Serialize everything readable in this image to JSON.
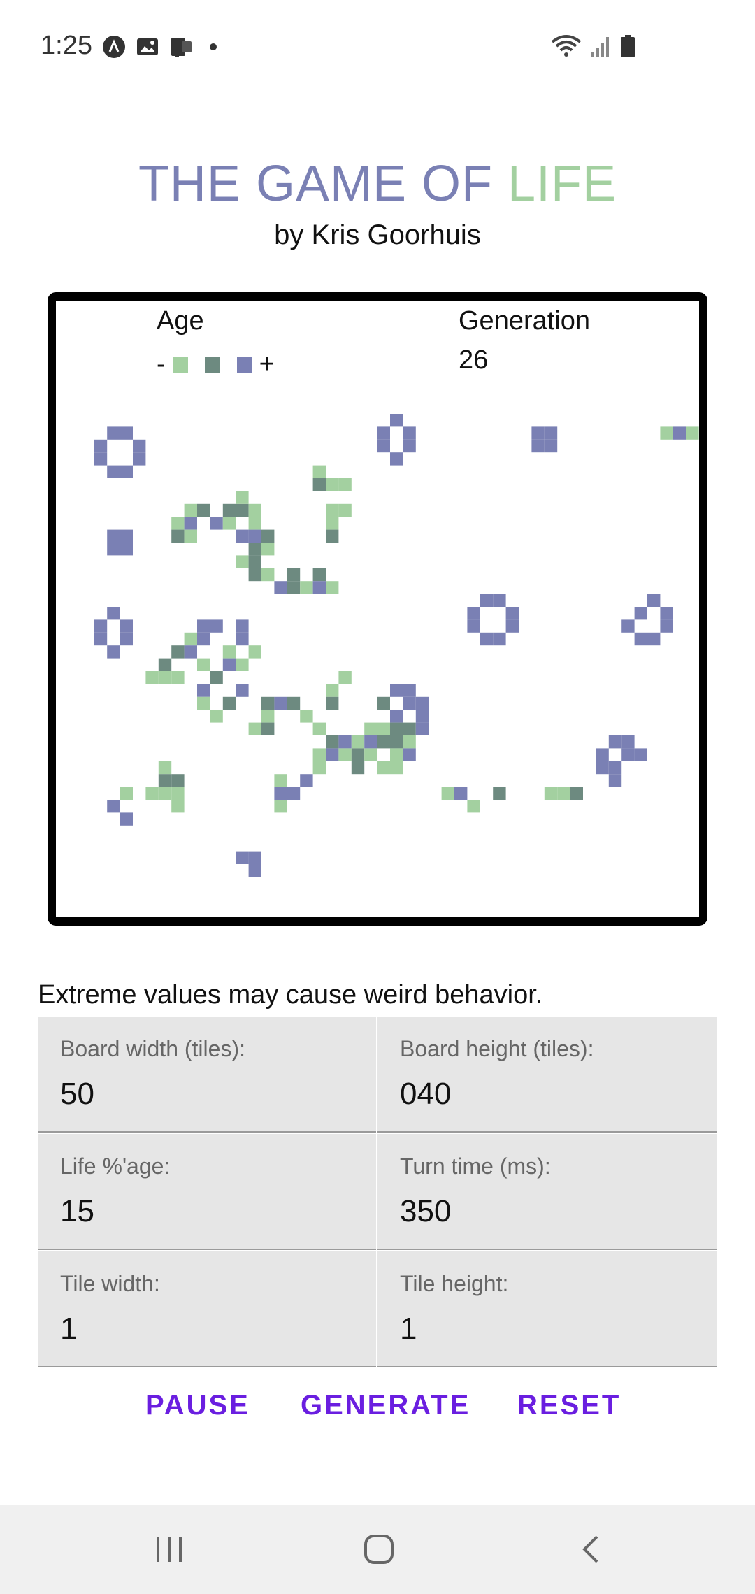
{
  "status_bar": {
    "time": "1:25",
    "left_icons": [
      "a-badge-icon",
      "gallery-icon",
      "cast-icon",
      "dot-icon"
    ],
    "right_icons": [
      "wifi-icon",
      "signal-icon",
      "battery-icon"
    ]
  },
  "header": {
    "title_part1": "THE GAME OF ",
    "title_part2": "LIFE",
    "subtitle": "by Kris Goorhuis"
  },
  "board": {
    "age_label": "Age",
    "age_minus": "-",
    "age_plus": "+",
    "generation_label": "Generation",
    "generation_value": "26",
    "colors": {
      "young": "#a3d0a0",
      "mid": "#6d8a80",
      "old": "#7a80b4"
    },
    "cells": [
      [
        3,
        1,
        3
      ],
      [
        4,
        1,
        3
      ],
      [
        2,
        2,
        3
      ],
      [
        5,
        2,
        3
      ],
      [
        2,
        3,
        3
      ],
      [
        5,
        3,
        3
      ],
      [
        3,
        4,
        3
      ],
      [
        4,
        4,
        3
      ],
      [
        3,
        9,
        3
      ],
      [
        4,
        9,
        3
      ],
      [
        3,
        10,
        3
      ],
      [
        4,
        10,
        3
      ],
      [
        25,
        0,
        3
      ],
      [
        24,
        1,
        3
      ],
      [
        26,
        1,
        3
      ],
      [
        24,
        2,
        3
      ],
      [
        26,
        2,
        3
      ],
      [
        25,
        3,
        3
      ],
      [
        36,
        1,
        3
      ],
      [
        37,
        1,
        3
      ],
      [
        36,
        2,
        3
      ],
      [
        37,
        2,
        3
      ],
      [
        46,
        1,
        1
      ],
      [
        47,
        1,
        3
      ],
      [
        48,
        1,
        1
      ],
      [
        19,
        4,
        1
      ],
      [
        19,
        5,
        2
      ],
      [
        20,
        5,
        1
      ],
      [
        21,
        5,
        1
      ],
      [
        20,
        7,
        1
      ],
      [
        21,
        7,
        1
      ],
      [
        20,
        8,
        1
      ],
      [
        20,
        9,
        2
      ],
      [
        9,
        7,
        1
      ],
      [
        10,
        7,
        2
      ],
      [
        12,
        7,
        2
      ],
      [
        13,
        7,
        2
      ],
      [
        14,
        7,
        1
      ],
      [
        13,
        6,
        1
      ],
      [
        8,
        8,
        1
      ],
      [
        9,
        8,
        3
      ],
      [
        11,
        8,
        3
      ],
      [
        12,
        8,
        1
      ],
      [
        14,
        8,
        1
      ],
      [
        8,
        9,
        2
      ],
      [
        9,
        9,
        1
      ],
      [
        13,
        9,
        3
      ],
      [
        14,
        9,
        3
      ],
      [
        15,
        9,
        2
      ],
      [
        14,
        10,
        2
      ],
      [
        15,
        10,
        1
      ],
      [
        13,
        11,
        1
      ],
      [
        14,
        11,
        2
      ],
      [
        14,
        12,
        2
      ],
      [
        15,
        12,
        1
      ],
      [
        17,
        12,
        2
      ],
      [
        16,
        13,
        3
      ],
      [
        17,
        13,
        2
      ],
      [
        18,
        13,
        1
      ],
      [
        19,
        12,
        2
      ],
      [
        19,
        13,
        3
      ],
      [
        20,
        13,
        1
      ],
      [
        3,
        15,
        3
      ],
      [
        2,
        16,
        3
      ],
      [
        4,
        16,
        3
      ],
      [
        2,
        17,
        3
      ],
      [
        4,
        17,
        3
      ],
      [
        3,
        18,
        3
      ],
      [
        10,
        16,
        3
      ],
      [
        11,
        16,
        3
      ],
      [
        9,
        17,
        1
      ],
      [
        10,
        17,
        3
      ],
      [
        13,
        17,
        3
      ],
      [
        13,
        16,
        3
      ],
      [
        8,
        18,
        2
      ],
      [
        9,
        18,
        3
      ],
      [
        12,
        18,
        1
      ],
      [
        14,
        18,
        1
      ],
      [
        7,
        19,
        2
      ],
      [
        10,
        19,
        1
      ],
      [
        12,
        19,
        3
      ],
      [
        13,
        19,
        1
      ],
      [
        6,
        20,
        1
      ],
      [
        7,
        20,
        1
      ],
      [
        8,
        20,
        1
      ],
      [
        11,
        20,
        2
      ],
      [
        10,
        21,
        3
      ],
      [
        13,
        21,
        3
      ],
      [
        10,
        22,
        1
      ],
      [
        12,
        22,
        2
      ],
      [
        11,
        23,
        1
      ],
      [
        32,
        14,
        3
      ],
      [
        33,
        14,
        3
      ],
      [
        31,
        15,
        3
      ],
      [
        34,
        15,
        3
      ],
      [
        31,
        16,
        3
      ],
      [
        34,
        16,
        3
      ],
      [
        32,
        17,
        3
      ],
      [
        33,
        17,
        3
      ],
      [
        45,
        14,
        3
      ],
      [
        44,
        15,
        3
      ],
      [
        46,
        15,
        3
      ],
      [
        43,
        16,
        3
      ],
      [
        46,
        16,
        3
      ],
      [
        44,
        17,
        3
      ],
      [
        45,
        17,
        3
      ],
      [
        21,
        20,
        1
      ],
      [
        20,
        21,
        1
      ],
      [
        20,
        22,
        2
      ],
      [
        25,
        21,
        3
      ],
      [
        26,
        21,
        3
      ],
      [
        24,
        22,
        2
      ],
      [
        26,
        22,
        3
      ],
      [
        27,
        22,
        3
      ],
      [
        25,
        23,
        3
      ],
      [
        27,
        23,
        3
      ],
      [
        26,
        24,
        2
      ],
      [
        27,
        24,
        3
      ],
      [
        15,
        22,
        2
      ],
      [
        16,
        22,
        3
      ],
      [
        17,
        22,
        2
      ],
      [
        15,
        23,
        1
      ],
      [
        18,
        23,
        1
      ],
      [
        14,
        24,
        1
      ],
      [
        15,
        24,
        2
      ],
      [
        19,
        24,
        1
      ],
      [
        20,
        25,
        2
      ],
      [
        21,
        25,
        3
      ],
      [
        22,
        25,
        1
      ],
      [
        20,
        26,
        3
      ],
      [
        21,
        26,
        1
      ],
      [
        19,
        26,
        1
      ],
      [
        19,
        27,
        1
      ],
      [
        23,
        24,
        1
      ],
      [
        24,
        24,
        1
      ],
      [
        25,
        24,
        2
      ],
      [
        24,
        25,
        2
      ],
      [
        25,
        25,
        2
      ],
      [
        26,
        25,
        1
      ],
      [
        23,
        25,
        3
      ],
      [
        22,
        26,
        2
      ],
      [
        23,
        26,
        1
      ],
      [
        25,
        26,
        1
      ],
      [
        26,
        26,
        3
      ],
      [
        22,
        27,
        2
      ],
      [
        24,
        27,
        1
      ],
      [
        25,
        27,
        1
      ],
      [
        42,
        25,
        3
      ],
      [
        43,
        25,
        3
      ],
      [
        41,
        26,
        3
      ],
      [
        43,
        26,
        3
      ],
      [
        44,
        26,
        3
      ],
      [
        41,
        27,
        3
      ],
      [
        42,
        27,
        3
      ],
      [
        42,
        28,
        3
      ],
      [
        7,
        27,
        1
      ],
      [
        7,
        28,
        2
      ],
      [
        8,
        28,
        2
      ],
      [
        6,
        29,
        1
      ],
      [
        7,
        29,
        1
      ],
      [
        8,
        29,
        1
      ],
      [
        8,
        30,
        1
      ],
      [
        4,
        29,
        1
      ],
      [
        3,
        30,
        3
      ],
      [
        4,
        31,
        3
      ],
      [
        16,
        28,
        1
      ],
      [
        16,
        29,
        3
      ],
      [
        17,
        29,
        3
      ],
      [
        18,
        28,
        3
      ],
      [
        16,
        30,
        1
      ],
      [
        29,
        29,
        1
      ],
      [
        30,
        29,
        3
      ],
      [
        31,
        30,
        1
      ],
      [
        33,
        29,
        2
      ],
      [
        37,
        29,
        1
      ],
      [
        38,
        29,
        1
      ],
      [
        39,
        29,
        2
      ],
      [
        13,
        34,
        3
      ],
      [
        14,
        34,
        3
      ],
      [
        14,
        35,
        3
      ]
    ]
  },
  "form": {
    "warning": "Extreme values may cause weird behavior.",
    "board_width_label": "Board width (tiles):",
    "board_width_value": "50",
    "board_height_label": "Board height (tiles):",
    "board_height_value": "040",
    "life_pct_label": "Life %'age:",
    "life_pct_value": "15",
    "turn_time_label": "Turn time (ms):",
    "turn_time_value": "350",
    "tile_width_label": "Tile width:",
    "tile_width_value": "1",
    "tile_height_label": "Tile height:",
    "tile_height_value": "1"
  },
  "actions": {
    "pause": "PAUSE",
    "generate": "GENERATE",
    "reset": "RESET"
  },
  "nav_bar": {
    "icons": [
      "recent-apps-icon",
      "home-icon",
      "back-icon"
    ]
  }
}
